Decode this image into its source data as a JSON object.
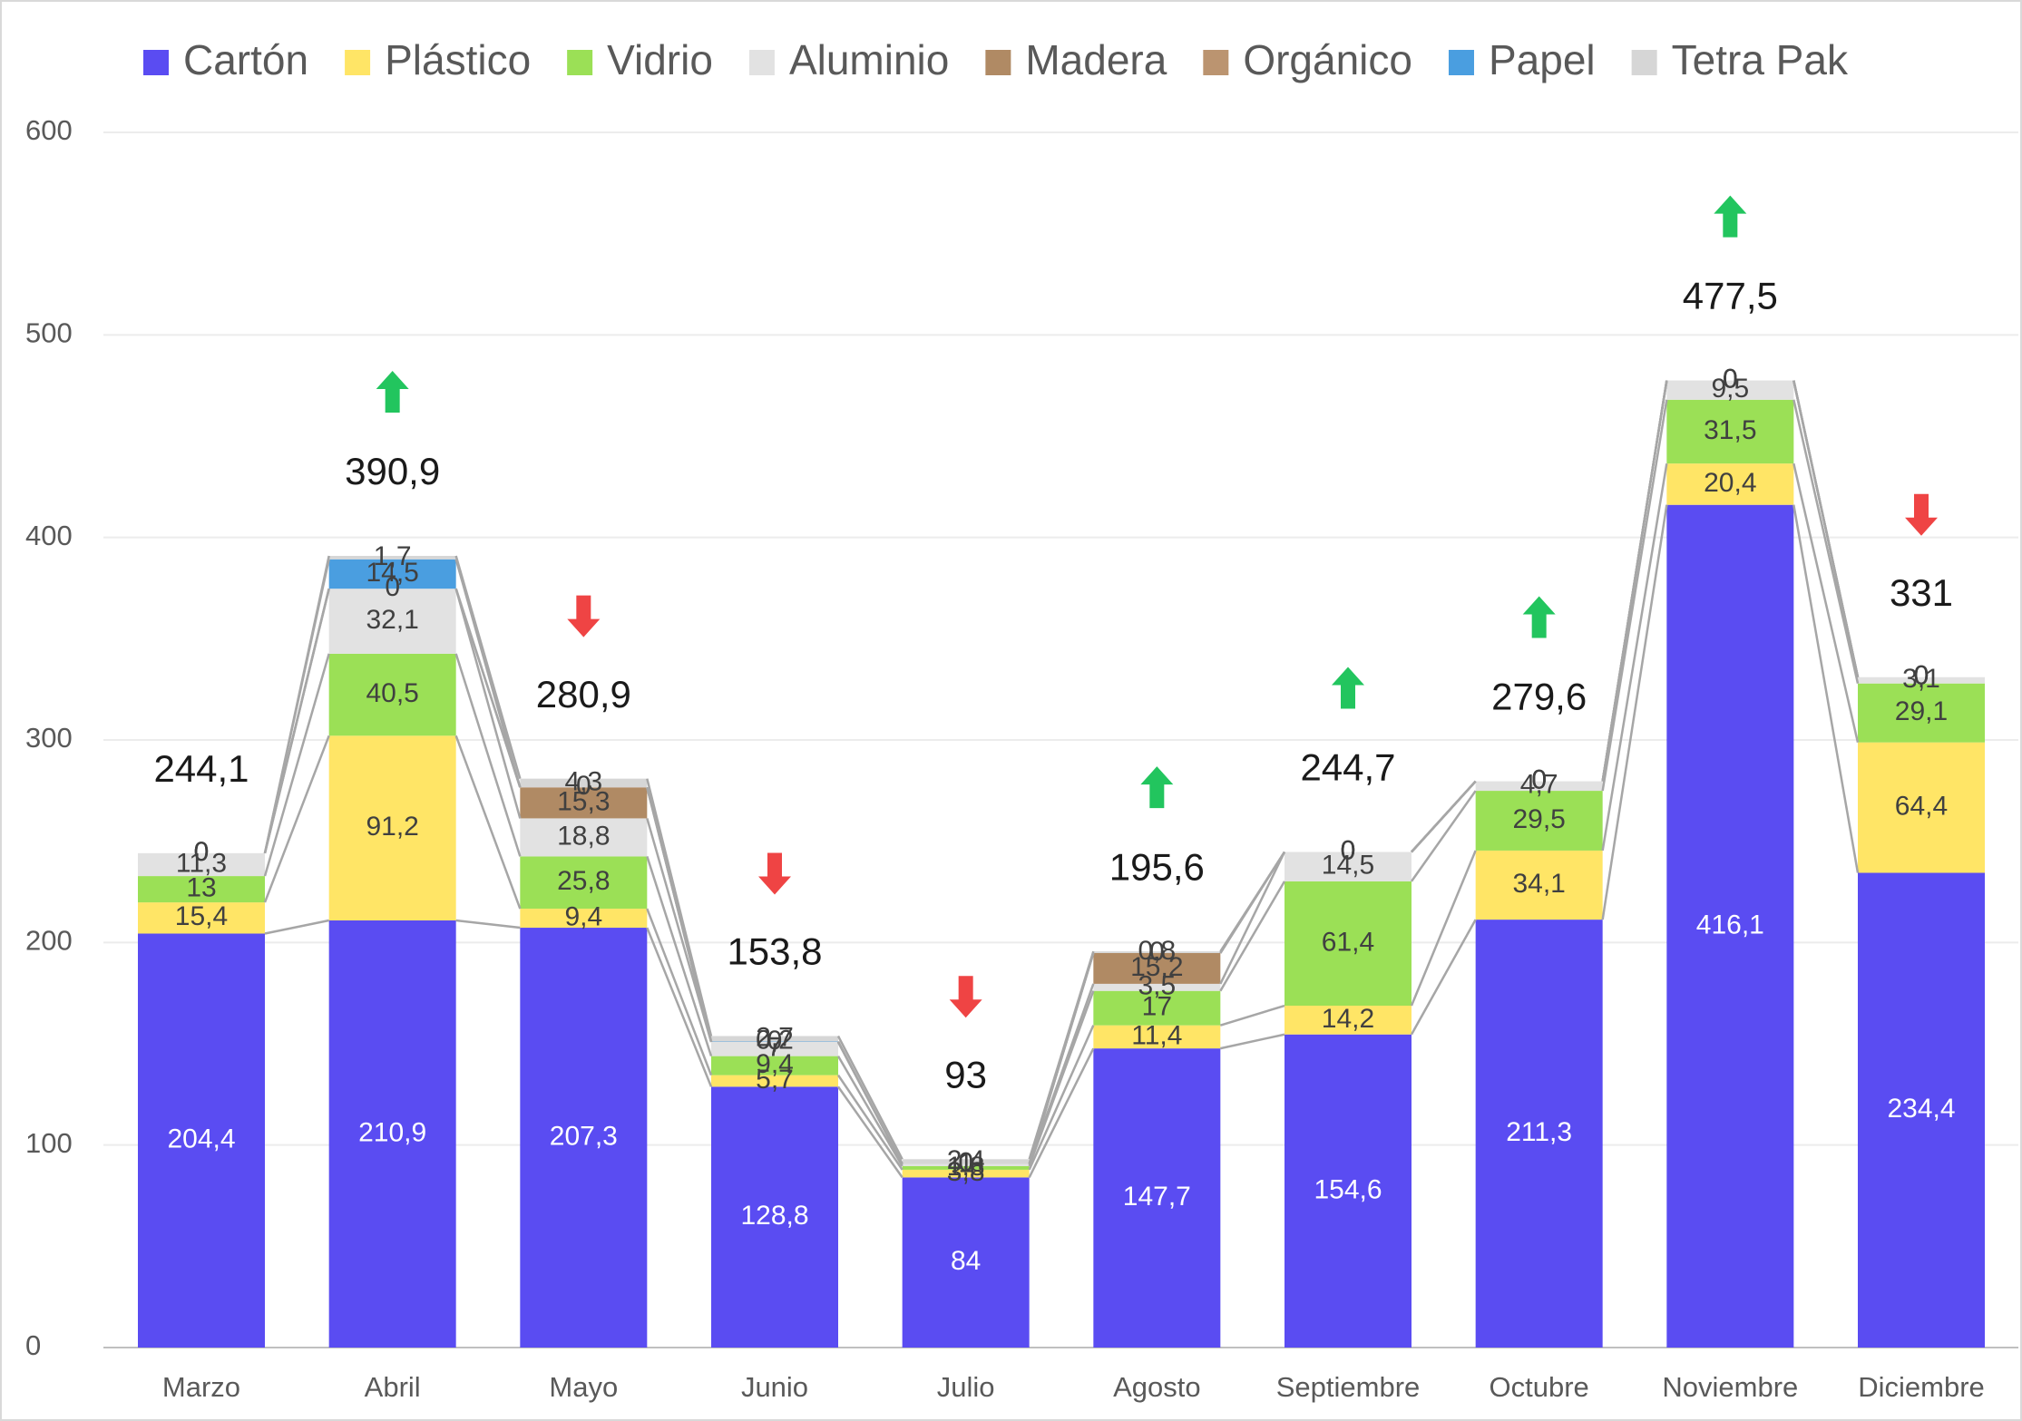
{
  "chart_data": {
    "type": "stacked_bar",
    "categories": [
      "Marzo",
      "Abril",
      "Mayo",
      "Junio",
      "Julio",
      "Agosto",
      "Septiembre",
      "Octubre",
      "Noviembre",
      "Diciembre"
    ],
    "series": [
      {
        "name": "Cartón",
        "color": "#5a4cf2",
        "values": [
          204.4,
          210.9,
          207.3,
          128.8,
          84,
          147.7,
          154.6,
          211.3,
          416.1,
          234.4
        ],
        "value_labels": [
          "204,4",
          "210,9",
          "207,3",
          "128,8",
          "84",
          "147,7",
          "154,6",
          "211,3",
          "416,1",
          "234,4"
        ]
      },
      {
        "name": "Plástico",
        "color": "#ffe566",
        "values": [
          15.4,
          91.2,
          9.4,
          5.7,
          3.8,
          11.4,
          14.2,
          34.1,
          20.4,
          64.4
        ],
        "value_labels": [
          "15,4",
          "91,2",
          "9,4",
          "5,7",
          "3,8",
          "11,4",
          "14,2",
          "34,1",
          "20,4",
          "64,4"
        ]
      },
      {
        "name": "Vidrio",
        "color": "#9be056",
        "values": [
          13,
          40.5,
          25.8,
          9.4,
          1.8,
          17,
          61.4,
          29.5,
          31.5,
          29.1
        ],
        "value_labels": [
          "13",
          "40,5",
          "25,8",
          "9,4",
          "1,8",
          "17",
          "61,4",
          "29,5",
          "31,5",
          "29,1"
        ]
      },
      {
        "name": "Aluminio",
        "color": "#e2e2e2",
        "values": [
          11.3,
          32.1,
          18.8,
          7,
          1,
          3.5,
          14.5,
          4.7,
          9.5,
          3.1
        ],
        "value_labels": [
          "11,3",
          "32,1",
          "18,8",
          "7",
          "1",
          "3,5",
          "14,5",
          "4,7",
          "9,5",
          "3,1"
        ]
      },
      {
        "name": "Madera",
        "color": "#b08a64",
        "values": [
          0,
          0,
          15.3,
          0,
          0,
          15.2,
          0,
          0,
          0,
          0
        ],
        "value_labels": [
          "0",
          "0",
          "15,3",
          "0",
          "0",
          "15,2",
          "0",
          "0",
          "0",
          "0"
        ]
      },
      {
        "name": "Orgánico",
        "color": "#bb9470",
        "values": [
          0,
          0,
          0,
          0,
          0,
          0,
          0,
          0,
          0,
          0
        ]
      },
      {
        "name": "Papel",
        "color": "#4a9ee0",
        "values": [
          0,
          14.5,
          0,
          0.2,
          0,
          0,
          0,
          0,
          0,
          0
        ],
        "value_labels": [
          "0",
          "14,5",
          "0",
          "0,2",
          "0",
          "0",
          "0",
          "0",
          "0",
          "0"
        ]
      },
      {
        "name": "Tetra Pak",
        "color": "#d6d6d6",
        "values": [
          0,
          1.7,
          4.3,
          2.7,
          2.4,
          0.8,
          0,
          0,
          0,
          0
        ],
        "value_labels": [
          "0",
          "1,7",
          "4,3",
          "2,7",
          "2,4",
          "0,8",
          "0",
          "0",
          "0",
          "0"
        ]
      }
    ],
    "totals": [
      244.1,
      390.9,
      280.9,
      153.8,
      93,
      195.6,
      244.7,
      279.6,
      477.5,
      331
    ],
    "total_labels": [
      "244,1",
      "390,9",
      "280,9",
      "153,8",
      "93",
      "195,6",
      "244,7",
      "279,6",
      "477,5",
      "331"
    ],
    "ylim": [
      0,
      600
    ],
    "yticks": [
      0,
      100,
      200,
      300,
      400,
      500,
      600
    ],
    "grid": true,
    "legend": "top"
  }
}
